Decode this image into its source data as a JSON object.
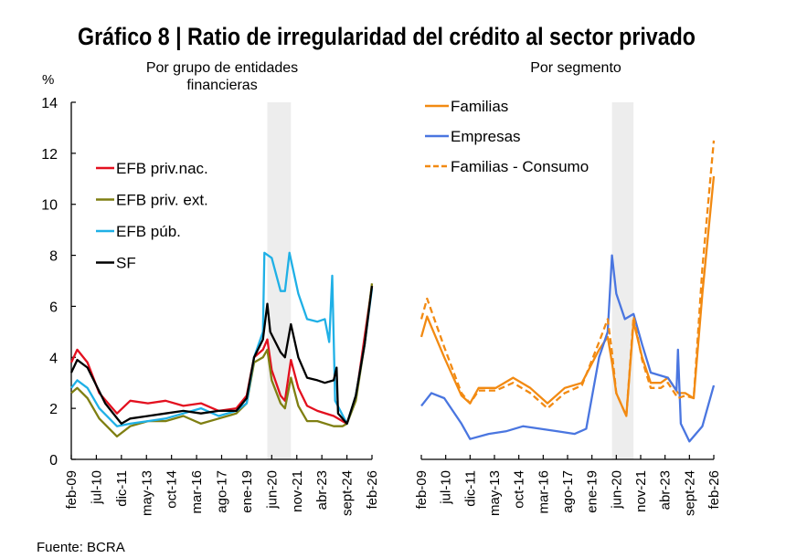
{
  "title": "Gráfico 8 | Ratio de irregularidad del crédito al sector privado",
  "source": "Fuente: BCRA",
  "colors": {
    "red": "#e3101f",
    "olive": "#7f7f12",
    "lightblue": "#1fb0e6",
    "black": "#000000",
    "orange": "#f28a12",
    "blue": "#4a76e0",
    "shade": "#ededed"
  },
  "chart_data": [
    {
      "type": "line",
      "subtitle_line1": "Por grupo de entidades",
      "subtitle_line2": "financieras",
      "ylabel": "%",
      "ylim": [
        0,
        14
      ],
      "yticks": [
        "0",
        "2",
        "4",
        "6",
        "8",
        "10",
        "12",
        "14"
      ],
      "xlim": [
        "2009-02",
        "2026-02"
      ],
      "xtick_labels": [
        "feb-09",
        "jul-10",
        "dic-11",
        "may-13",
        "oct-14",
        "mar-16",
        "ago-17",
        "ene-19",
        "jun-20",
        "nov-21",
        "abr-23",
        "sept-24",
        "feb-26"
      ],
      "shaded_period": [
        "2020-03",
        "2021-07"
      ],
      "legend_placement": "upper-left",
      "series": [
        {
          "name": "EFB priv.nac.",
          "color": "#e3101f",
          "style": "solid",
          "points": [
            [
              "2009-02",
              3.8
            ],
            [
              "2009-06",
              4.3
            ],
            [
              "2010-01",
              3.8
            ],
            [
              "2010-09",
              2.6
            ],
            [
              "2011-09",
              1.8
            ],
            [
              "2012-06",
              2.3
            ],
            [
              "2013-06",
              2.2
            ],
            [
              "2014-06",
              2.3
            ],
            [
              "2015-06",
              2.1
            ],
            [
              "2016-06",
              2.2
            ],
            [
              "2017-06",
              1.9
            ],
            [
              "2018-06",
              2.0
            ],
            [
              "2019-01",
              2.5
            ],
            [
              "2019-06",
              4.0
            ],
            [
              "2019-12",
              4.3
            ],
            [
              "2020-03",
              4.7
            ],
            [
              "2020-06",
              3.5
            ],
            [
              "2020-12",
              2.5
            ],
            [
              "2021-03",
              2.3
            ],
            [
              "2021-07",
              3.9
            ],
            [
              "2021-12",
              2.8
            ],
            [
              "2022-06",
              2.1
            ],
            [
              "2023-01",
              1.9
            ],
            [
              "2023-12",
              1.7
            ],
            [
              "2024-06",
              1.5
            ],
            [
              "2024-09",
              1.4
            ],
            [
              "2025-03",
              2.4
            ],
            [
              "2025-09",
              4.8
            ],
            [
              "2026-02",
              6.8
            ]
          ]
        },
        {
          "name": "EFB priv. ext.",
          "color": "#7f7f12",
          "style": "solid",
          "points": [
            [
              "2009-02",
              2.6
            ],
            [
              "2009-06",
              2.8
            ],
            [
              "2010-01",
              2.4
            ],
            [
              "2010-09",
              1.6
            ],
            [
              "2011-09",
              0.9
            ],
            [
              "2012-06",
              1.3
            ],
            [
              "2013-06",
              1.5
            ],
            [
              "2014-06",
              1.5
            ],
            [
              "2015-06",
              1.7
            ],
            [
              "2016-06",
              1.4
            ],
            [
              "2017-06",
              1.6
            ],
            [
              "2018-06",
              1.8
            ],
            [
              "2019-01",
              2.2
            ],
            [
              "2019-06",
              3.8
            ],
            [
              "2019-12",
              4.0
            ],
            [
              "2020-03",
              4.3
            ],
            [
              "2020-06",
              3.1
            ],
            [
              "2020-12",
              2.2
            ],
            [
              "2021-03",
              2.0
            ],
            [
              "2021-07",
              3.2
            ],
            [
              "2021-12",
              2.1
            ],
            [
              "2022-06",
              1.5
            ],
            [
              "2023-01",
              1.5
            ],
            [
              "2023-12",
              1.3
            ],
            [
              "2024-06",
              1.3
            ],
            [
              "2024-09",
              1.4
            ],
            [
              "2025-03",
              2.3
            ],
            [
              "2025-09",
              4.5
            ],
            [
              "2026-02",
              6.9
            ]
          ]
        },
        {
          "name": "EFB púb.",
          "color": "#1fb0e6",
          "style": "solid",
          "points": [
            [
              "2009-02",
              2.8
            ],
            [
              "2009-06",
              3.1
            ],
            [
              "2010-01",
              2.8
            ],
            [
              "2010-09",
              2.0
            ],
            [
              "2011-09",
              1.3
            ],
            [
              "2012-06",
              1.4
            ],
            [
              "2013-06",
              1.5
            ],
            [
              "2014-06",
              1.6
            ],
            [
              "2015-06",
              1.8
            ],
            [
              "2016-06",
              2.0
            ],
            [
              "2017-06",
              1.7
            ],
            [
              "2018-06",
              1.9
            ],
            [
              "2019-01",
              2.2
            ],
            [
              "2019-06",
              4.0
            ],
            [
              "2019-12",
              5.0
            ],
            [
              "2020-01",
              8.1
            ],
            [
              "2020-06",
              7.9
            ],
            [
              "2020-12",
              6.6
            ],
            [
              "2021-03",
              6.6
            ],
            [
              "2021-06",
              8.1
            ],
            [
              "2021-12",
              6.5
            ],
            [
              "2022-06",
              5.5
            ],
            [
              "2023-01",
              5.4
            ],
            [
              "2023-06",
              5.5
            ],
            [
              "2023-09",
              4.6
            ],
            [
              "2023-11",
              7.2
            ],
            [
              "2024-01",
              2.3
            ],
            [
              "2024-09",
              1.4
            ],
            [
              "2025-03",
              2.5
            ],
            [
              "2025-09",
              4.5
            ],
            [
              "2026-02",
              6.7
            ]
          ]
        },
        {
          "name": "SF",
          "color": "#000000",
          "style": "solid",
          "points": [
            [
              "2009-02",
              3.4
            ],
            [
              "2009-06",
              3.9
            ],
            [
              "2010-01",
              3.6
            ],
            [
              "2011-01",
              2.2
            ],
            [
              "2011-12",
              1.4
            ],
            [
              "2012-06",
              1.6
            ],
            [
              "2013-06",
              1.7
            ],
            [
              "2014-06",
              1.8
            ],
            [
              "2015-06",
              1.9
            ],
            [
              "2016-06",
              1.8
            ],
            [
              "2017-06",
              1.9
            ],
            [
              "2018-06",
              1.9
            ],
            [
              "2019-01",
              2.4
            ],
            [
              "2019-06",
              4.0
            ],
            [
              "2019-12",
              4.7
            ],
            [
              "2020-03",
              6.1
            ],
            [
              "2020-05",
              5.0
            ],
            [
              "2020-12",
              4.2
            ],
            [
              "2021-03",
              4.0
            ],
            [
              "2021-07",
              5.3
            ],
            [
              "2021-12",
              4.0
            ],
            [
              "2022-06",
              3.2
            ],
            [
              "2023-01",
              3.1
            ],
            [
              "2023-06",
              3.0
            ],
            [
              "2023-12",
              3.1
            ],
            [
              "2024-02",
              3.6
            ],
            [
              "2024-03",
              1.8
            ],
            [
              "2024-09",
              1.4
            ],
            [
              "2025-03",
              2.5
            ],
            [
              "2025-09",
              4.5
            ],
            [
              "2026-02",
              6.8
            ]
          ]
        }
      ]
    },
    {
      "type": "line",
      "subtitle_line1": "Por segmento",
      "ylim": [
        0,
        14
      ],
      "xlim": [
        "2009-02",
        "2026-02"
      ],
      "xtick_labels": [
        "feb-09",
        "jul-10",
        "dic-11",
        "may-13",
        "oct-14",
        "mar-16",
        "ago-17",
        "ene-19",
        "jun-20",
        "nov-21",
        "abr-23",
        "sept-24",
        "feb-26"
      ],
      "shaded_period": [
        "2020-03",
        "2021-06"
      ],
      "legend_placement": "upper-left",
      "series": [
        {
          "name": "Familias",
          "color": "#f28a12",
          "style": "solid",
          "points": [
            [
              "2009-02",
              4.8
            ],
            [
              "2009-06",
              5.6
            ],
            [
              "2010-06",
              4.0
            ],
            [
              "2011-06",
              2.5
            ],
            [
              "2011-12",
              2.2
            ],
            [
              "2012-06",
              2.8
            ],
            [
              "2013-06",
              2.8
            ],
            [
              "2014-06",
              3.2
            ],
            [
              "2015-06",
              2.8
            ],
            [
              "2016-06",
              2.2
            ],
            [
              "2017-06",
              2.8
            ],
            [
              "2018-06",
              3.0
            ],
            [
              "2019-06",
              4.3
            ],
            [
              "2019-12",
              4.8
            ],
            [
              "2020-03",
              3.8
            ],
            [
              "2020-06",
              2.6
            ],
            [
              "2021-01",
              1.7
            ],
            [
              "2021-06",
              5.4
            ],
            [
              "2021-12",
              4.0
            ],
            [
              "2022-06",
              3.0
            ],
            [
              "2023-01",
              3.0
            ],
            [
              "2023-06",
              3.2
            ],
            [
              "2024-01",
              2.6
            ],
            [
              "2024-06",
              2.6
            ],
            [
              "2024-12",
              2.4
            ],
            [
              "2025-06",
              6.5
            ],
            [
              "2026-02",
              11.1
            ]
          ]
        },
        {
          "name": "Empresas",
          "color": "#4a76e0",
          "style": "solid",
          "points": [
            [
              "2009-02",
              2.1
            ],
            [
              "2009-09",
              2.6
            ],
            [
              "2010-06",
              2.4
            ],
            [
              "2011-06",
              1.4
            ],
            [
              "2011-12",
              0.8
            ],
            [
              "2013-01",
              1.0
            ],
            [
              "2014-01",
              1.1
            ],
            [
              "2015-01",
              1.3
            ],
            [
              "2016-01",
              1.2
            ],
            [
              "2017-01",
              1.1
            ],
            [
              "2018-01",
              1.0
            ],
            [
              "2018-09",
              1.2
            ],
            [
              "2019-06",
              4.0
            ],
            [
              "2019-12",
              5.0
            ],
            [
              "2020-03",
              8.0
            ],
            [
              "2020-06",
              6.5
            ],
            [
              "2020-12",
              5.5
            ],
            [
              "2021-06",
              5.7
            ],
            [
              "2021-12",
              4.5
            ],
            [
              "2022-06",
              3.4
            ],
            [
              "2023-06",
              3.2
            ],
            [
              "2023-12",
              2.7
            ],
            [
              "2024-01",
              4.3
            ],
            [
              "2024-03",
              1.4
            ],
            [
              "2024-09",
              0.7
            ],
            [
              "2025-06",
              1.3
            ],
            [
              "2026-02",
              2.9
            ]
          ]
        },
        {
          "name": "Familias - Consumo",
          "color": "#f28a12",
          "style": "dashed",
          "points": [
            [
              "2009-02",
              5.5
            ],
            [
              "2009-06",
              6.3
            ],
            [
              "2010-06",
              4.4
            ],
            [
              "2011-06",
              2.6
            ],
            [
              "2011-12",
              2.2
            ],
            [
              "2012-06",
              2.7
            ],
            [
              "2013-06",
              2.7
            ],
            [
              "2014-06",
              3.0
            ],
            [
              "2015-06",
              2.6
            ],
            [
              "2016-06",
              2.0
            ],
            [
              "2017-06",
              2.6
            ],
            [
              "2018-06",
              2.9
            ],
            [
              "2019-06",
              4.6
            ],
            [
              "2019-12",
              5.5
            ],
            [
              "2020-03",
              4.2
            ],
            [
              "2020-06",
              2.6
            ],
            [
              "2021-01",
              1.7
            ],
            [
              "2021-06",
              5.6
            ],
            [
              "2021-12",
              3.9
            ],
            [
              "2022-06",
              2.8
            ],
            [
              "2023-01",
              2.8
            ],
            [
              "2023-06",
              3.0
            ],
            [
              "2024-01",
              2.4
            ],
            [
              "2024-06",
              2.5
            ],
            [
              "2024-12",
              2.4
            ],
            [
              "2025-06",
              7.5
            ],
            [
              "2026-02",
              12.5
            ]
          ]
        }
      ]
    }
  ]
}
